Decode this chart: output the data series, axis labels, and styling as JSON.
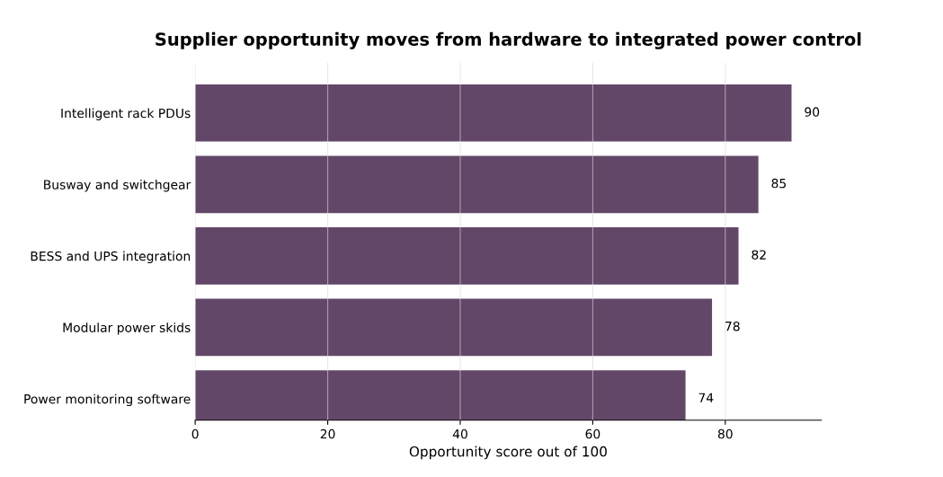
{
  "chart_data": {
    "type": "bar",
    "orientation": "horizontal",
    "title": "Supplier opportunity moves from hardware to integrated power control",
    "xlabel": "Opportunity score out of 100",
    "categories": [
      "Intelligent rack PDUs",
      "Busway and switchgear",
      "BESS and UPS integration",
      "Modular power skids",
      "Power monitoring software"
    ],
    "values": [
      90,
      85,
      82,
      78,
      74
    ],
    "color": "#634769",
    "data_labels": true,
    "xlim": [
      0,
      94.5
    ],
    "xticks": [
      0,
      20,
      40,
      60,
      80
    ],
    "grid": "x",
    "legend": false
  }
}
